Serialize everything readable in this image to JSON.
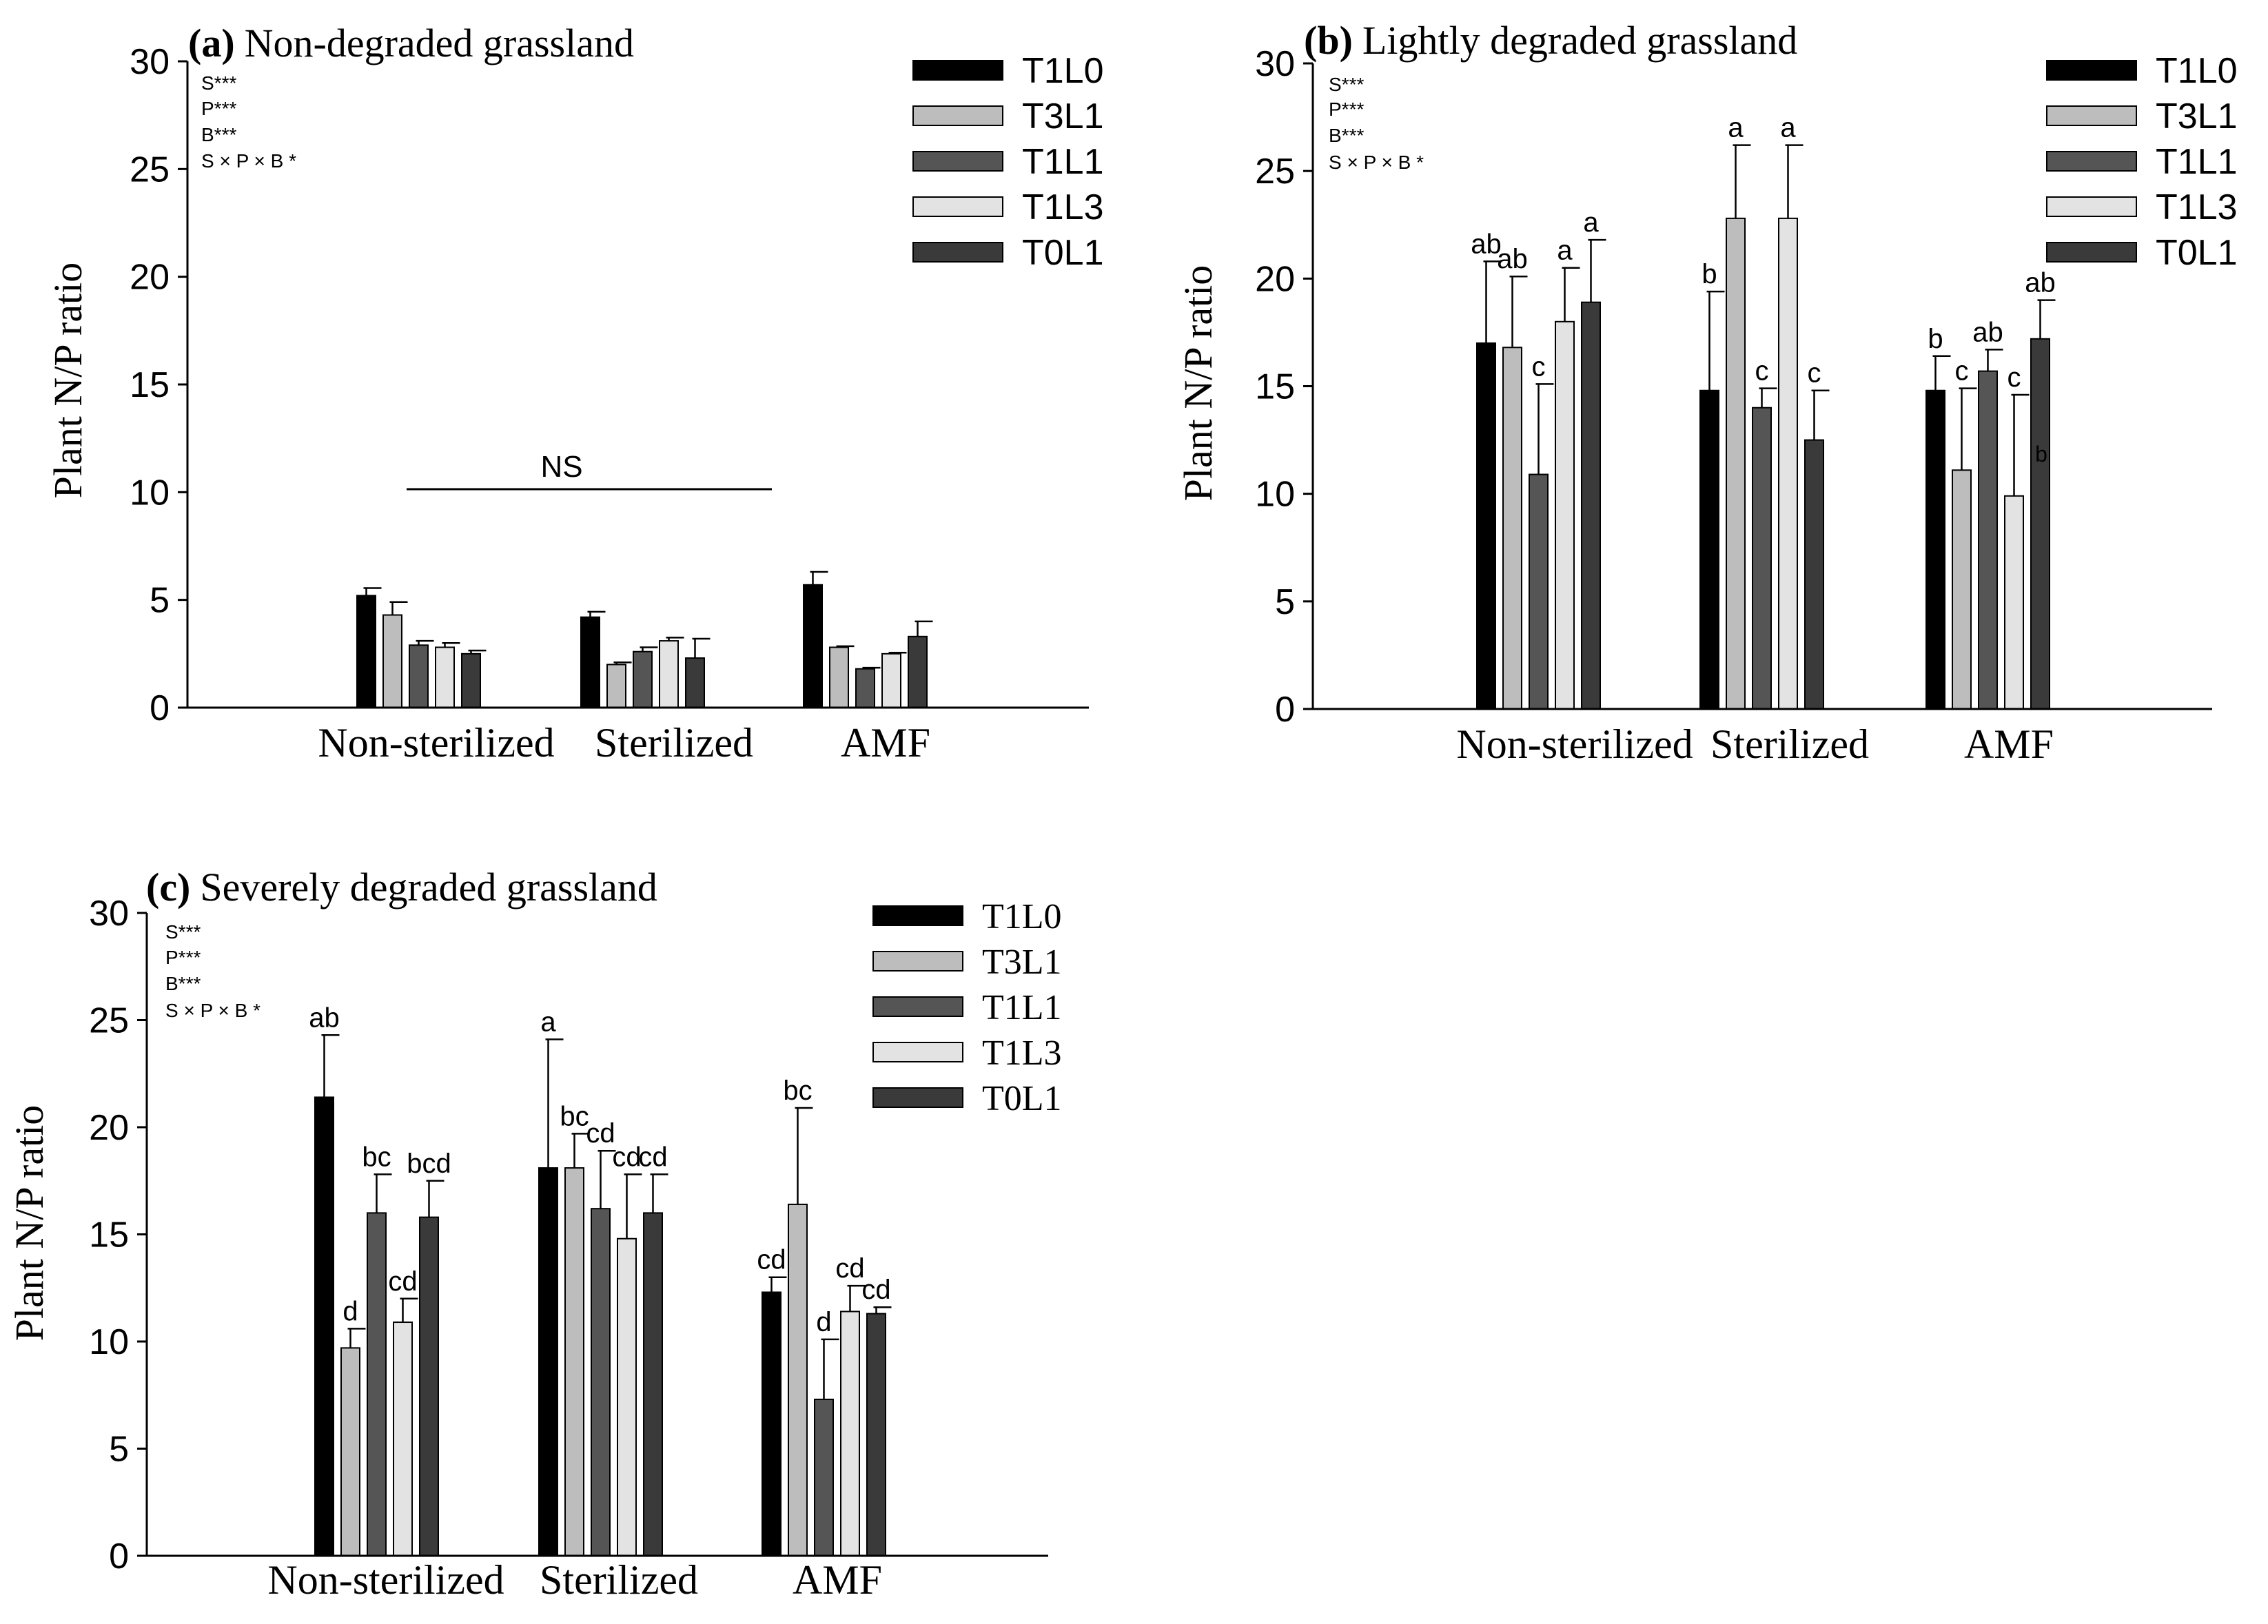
{
  "figure": {
    "y_axis_label": "Plant N/P ratio",
    "series_colors": {
      "T1L0": "#000000",
      "T3L1": "#bdbdbd",
      "T1L1": "#555555",
      "T1L3": "#e3e3e3",
      "T0L1": "#3a3a3a"
    }
  },
  "chart_data": [
    {
      "type": "bar",
      "panel_letter": "(a)",
      "title": "Non-degraded grassland",
      "ylabel": "Plant N/P ratio",
      "ylim": [
        0,
        30
      ],
      "yticks": [
        "0",
        "5",
        "10",
        "15",
        "20",
        "25",
        "30"
      ],
      "categories": [
        "Non-sterilized",
        "Sterilized",
        "AMF"
      ],
      "legend": [
        "T1L0",
        "T3L1",
        "T1L1",
        "T1L3",
        "T0L1"
      ],
      "legend_position": "top-right",
      "stats": [
        "S***",
        "P***",
        "B***",
        "S × P × B *"
      ],
      "ns_label": "NS",
      "series": [
        {
          "name": "T1L0",
          "values": [
            5.2,
            4.2,
            5.7
          ],
          "errors": [
            0.35,
            0.25,
            0.6
          ]
        },
        {
          "name": "T3L1",
          "values": [
            4.3,
            2.0,
            2.8
          ],
          "errors": [
            0.6,
            0.1,
            0.05
          ]
        },
        {
          "name": "T1L1",
          "values": [
            2.9,
            2.6,
            1.8
          ],
          "errors": [
            0.2,
            0.2,
            0.05
          ]
        },
        {
          "name": "T1L3",
          "values": [
            2.8,
            3.1,
            2.5
          ],
          "errors": [
            0.2,
            0.15,
            0.05
          ]
        },
        {
          "name": "T0L1",
          "values": [
            2.5,
            2.3,
            3.3
          ],
          "errors": [
            0.15,
            0.9,
            0.7
          ]
        }
      ],
      "letters": null
    },
    {
      "type": "bar",
      "panel_letter": "(b)",
      "title": "Lightly degraded grassland",
      "ylabel": "Plant N/P ratio",
      "ylim": [
        0,
        30
      ],
      "yticks": [
        "0",
        "5",
        "10",
        "15",
        "20",
        "25",
        "30"
      ],
      "categories": [
        "Non-sterilized",
        "Sterilized",
        "AMF"
      ],
      "legend": [
        "T1L0",
        "T3L1",
        "T1L1",
        "T1L3",
        "T0L1"
      ],
      "legend_position": "top-right",
      "stats": [
        "S***",
        "P***",
        "B***",
        "S × P × B *"
      ],
      "series": [
        {
          "name": "T1L0",
          "values": [
            17.0,
            14.8,
            14.8
          ],
          "errors": [
            3.8,
            4.6,
            1.6
          ]
        },
        {
          "name": "T3L1",
          "values": [
            16.8,
            22.8,
            11.1
          ],
          "errors": [
            3.3,
            3.4,
            3.8
          ]
        },
        {
          "name": "T1L1",
          "values": [
            10.9,
            14.0,
            15.7
          ],
          "errors": [
            4.2,
            0.9,
            1.0
          ]
        },
        {
          "name": "T1L3",
          "values": [
            18.0,
            22.8,
            9.9
          ],
          "errors": [
            2.5,
            3.4,
            4.7
          ]
        },
        {
          "name": "T0L1",
          "values": [
            18.9,
            12.5,
            17.2
          ],
          "errors": [
            2.9,
            2.3,
            1.8
          ]
        }
      ],
      "letters": [
        [
          "ab",
          "b",
          "b"
        ],
        [
          "ab",
          "a",
          "c"
        ],
        [
          "c",
          "c",
          "ab"
        ],
        [
          "a",
          "a",
          "c"
        ],
        [
          "a",
          "c",
          "ab"
        ]
      ],
      "extra_letter": "b"
    },
    {
      "type": "bar",
      "panel_letter": "(c)",
      "title": "Severely degraded grassland",
      "ylabel": "Plant N/P ratio",
      "ylim": [
        0,
        30
      ],
      "yticks": [
        "0",
        "5",
        "10",
        "15",
        "20",
        "25",
        "30"
      ],
      "categories": [
        "Non-sterilized",
        "Sterilized",
        "AMF"
      ],
      "legend": [
        "T1L0",
        "T3L1",
        "T1L1",
        "T1L3",
        "T0L1"
      ],
      "legend_position": "top-right",
      "stats": [
        "S***",
        "P***",
        "B***",
        "S × P × B *"
      ],
      "series": [
        {
          "name": "T1L0",
          "values": [
            21.4,
            18.1,
            12.3
          ],
          "errors": [
            2.9,
            6.0,
            0.7
          ]
        },
        {
          "name": "T3L1",
          "values": [
            9.7,
            18.1,
            16.4
          ],
          "errors": [
            0.9,
            1.6,
            4.5
          ]
        },
        {
          "name": "T1L1",
          "values": [
            16.0,
            16.2,
            7.3
          ],
          "errors": [
            1.8,
            2.7,
            2.8
          ]
        },
        {
          "name": "T1L3",
          "values": [
            10.9,
            14.8,
            11.4
          ],
          "errors": [
            1.1,
            3.0,
            1.2
          ]
        },
        {
          "name": "T0L1",
          "values": [
            15.8,
            16.0,
            11.3
          ],
          "errors": [
            1.7,
            1.8,
            0.3
          ]
        }
      ],
      "letters": [
        [
          "ab",
          "a",
          "cd"
        ],
        [
          "d",
          "bc",
          "bc"
        ],
        [
          "bc",
          "cd",
          "d"
        ],
        [
          "cd",
          "cd",
          "cd"
        ],
        [
          "bcd",
          "cd",
          "cd"
        ]
      ]
    }
  ]
}
